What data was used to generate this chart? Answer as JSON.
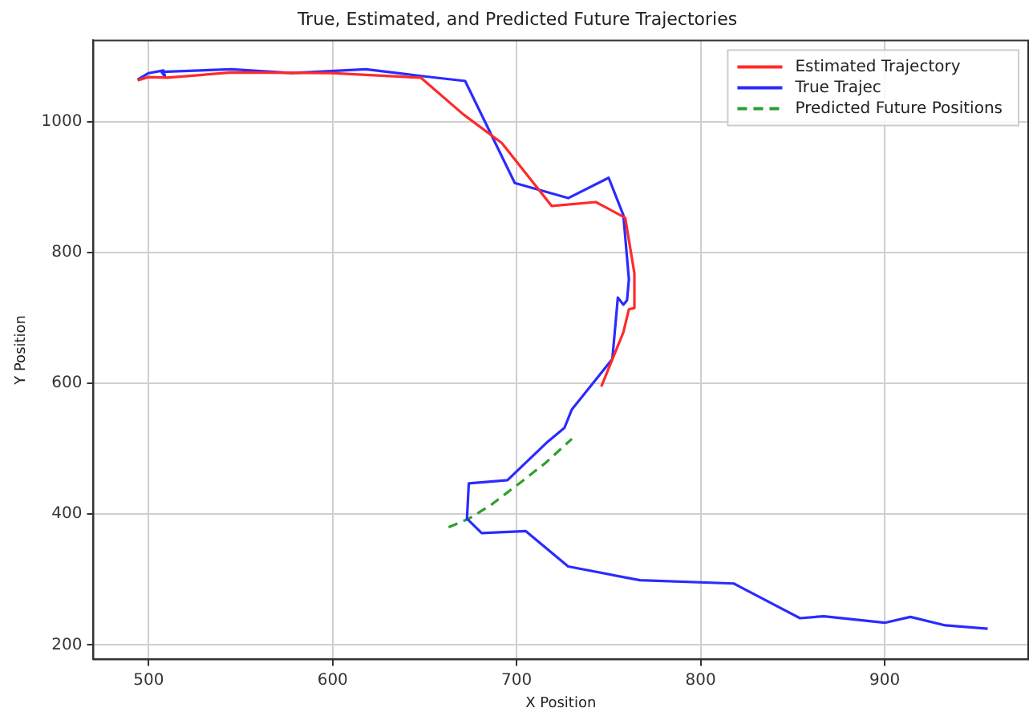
{
  "chart_data": {
    "type": "line",
    "title": "True, Estimated, and Predicted Future Trajectories",
    "xlabel": "X Position",
    "ylabel": "Y Position",
    "xlim": [
      470,
      978
    ],
    "xticks": [
      500,
      600,
      700,
      800,
      900
    ],
    "ylim": [
      178,
      1124
    ],
    "yticks": [
      200,
      400,
      600,
      800,
      1000
    ],
    "grid": true,
    "legend": "top right",
    "marker": "none",
    "series": [
      {
        "name": "Estimated Trajectory",
        "color": "#ff2a2a",
        "line_style": "solid",
        "x": [
          494,
          500,
          510,
          545,
          599,
          648,
          671,
          692,
          719,
          743,
          759,
          764,
          764,
          761,
          758,
          746
        ],
        "values": [
          1063,
          1068,
          1067,
          1075,
          1074,
          1067,
          1011,
          967,
          871,
          877,
          853,
          768,
          715,
          713,
          678,
          595
        ]
      },
      {
        "name": "True Trajec",
        "color": "#2b2bff",
        "line_style": "solid",
        "x": [
          494,
          500,
          508,
          509,
          507,
          545,
          578,
          618,
          647,
          672,
          699,
          728,
          750,
          758,
          761,
          760,
          758,
          755,
          752,
          730,
          726,
          717,
          695,
          674,
          673,
          681,
          705,
          728,
          767,
          818,
          822,
          854,
          867,
          900,
          914,
          933,
          956
        ],
        "values": [
          1064,
          1074,
          1078,
          1068,
          1076,
          1080,
          1074,
          1080,
          1070,
          1062,
          906,
          883,
          914,
          857,
          759,
          727,
          720,
          731,
          637,
          560,
          532,
          511,
          452,
          447,
          393,
          371,
          374,
          320,
          299,
          294,
          288,
          241,
          244,
          234,
          243,
          230,
          225
        ]
      },
      {
        "name": "Predicted Future Positions",
        "color": "#2ca02c",
        "line_style": "dashed",
        "x": [
          663,
          674,
          686,
          701,
          716,
          730
        ],
        "values": [
          380,
          393,
          414,
          446,
          479,
          515
        ]
      }
    ]
  }
}
